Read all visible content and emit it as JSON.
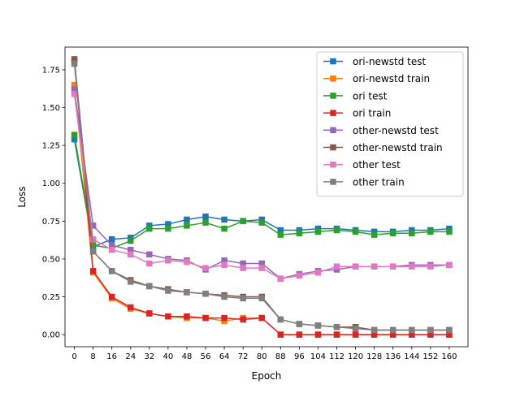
{
  "chart_data": {
    "type": "line",
    "title": "",
    "xlabel": "Epoch",
    "ylabel": "Loss",
    "xlim": [
      -4,
      168
    ],
    "ylim": [
      -0.08,
      1.9
    ],
    "grid": false,
    "legend_position": "top-right",
    "x": [
      0,
      8,
      16,
      24,
      32,
      40,
      48,
      56,
      64,
      72,
      80,
      88,
      96,
      104,
      112,
      120,
      128,
      136,
      144,
      152,
      160
    ],
    "x_ticks": [
      "0",
      "8",
      "16",
      "24",
      "32",
      "40",
      "48",
      "56",
      "64",
      "72",
      "80",
      "88",
      "96",
      "104",
      "112",
      "120",
      "128",
      "136",
      "144",
      "152",
      "160"
    ],
    "y_ticks": [
      0.0,
      0.25,
      0.5,
      0.75,
      1.0,
      1.25,
      1.5,
      1.75
    ],
    "y_tick_labels": [
      "0.00",
      "0.25",
      "0.50",
      "0.75",
      "1.00",
      "1.25",
      "1.50",
      "1.75"
    ],
    "series": [
      {
        "name": "ori-newstd test",
        "color": "#1f77b4",
        "values": [
          1.29,
          0.58,
          0.63,
          0.64,
          0.72,
          0.73,
          0.76,
          0.78,
          0.76,
          0.75,
          0.76,
          0.69,
          0.69,
          0.7,
          0.7,
          0.69,
          0.68,
          0.68,
          0.69,
          0.69,
          0.7
        ]
      },
      {
        "name": "ori-newstd train",
        "color": "#ff7f0e",
        "values": [
          1.65,
          0.41,
          0.24,
          0.17,
          0.14,
          0.12,
          0.11,
          0.11,
          0.09,
          0.11,
          0.11,
          0.0,
          0.0,
          0.0,
          0.0,
          0.0,
          0.0,
          0.0,
          0.0,
          0.0,
          0.0
        ]
      },
      {
        "name": "ori test",
        "color": "#2ca02c",
        "values": [
          1.32,
          0.59,
          0.57,
          0.62,
          0.7,
          0.7,
          0.72,
          0.74,
          0.7,
          0.75,
          0.74,
          0.66,
          0.67,
          0.68,
          0.69,
          0.68,
          0.66,
          0.67,
          0.67,
          0.68,
          0.68
        ]
      },
      {
        "name": "ori train",
        "color": "#d62728",
        "values": [
          1.81,
          0.42,
          0.25,
          0.18,
          0.14,
          0.12,
          0.12,
          0.11,
          0.11,
          0.1,
          0.11,
          0.0,
          0.0,
          0.0,
          0.0,
          0.0,
          0.0,
          0.0,
          0.0,
          0.0,
          0.0
        ]
      },
      {
        "name": "other-newstd test",
        "color": "#9467bd",
        "values": [
          1.62,
          0.72,
          0.59,
          0.56,
          0.53,
          0.5,
          0.49,
          0.43,
          0.49,
          0.47,
          0.47,
          0.37,
          0.4,
          0.42,
          0.43,
          0.45,
          0.45,
          0.45,
          0.46,
          0.46,
          0.46
        ]
      },
      {
        "name": "other-newstd train",
        "color": "#8c564b",
        "values": [
          1.82,
          0.55,
          0.42,
          0.36,
          0.32,
          0.3,
          0.28,
          0.27,
          0.26,
          0.25,
          0.25,
          0.1,
          0.07,
          0.06,
          0.05,
          0.05,
          0.03,
          0.03,
          0.03,
          0.03,
          0.03
        ]
      },
      {
        "name": "other test",
        "color": "#e377c2",
        "values": [
          1.59,
          0.63,
          0.56,
          0.53,
          0.47,
          0.49,
          0.48,
          0.44,
          0.46,
          0.44,
          0.44,
          0.37,
          0.39,
          0.41,
          0.45,
          0.45,
          0.45,
          0.45,
          0.45,
          0.45,
          0.46
        ]
      },
      {
        "name": "other train",
        "color": "#7f7f7f",
        "values": [
          1.79,
          0.55,
          0.42,
          0.35,
          0.32,
          0.29,
          0.28,
          0.27,
          0.25,
          0.24,
          0.24,
          0.1,
          0.07,
          0.06,
          0.05,
          0.04,
          0.03,
          0.03,
          0.03,
          0.03,
          0.03
        ]
      }
    ]
  }
}
